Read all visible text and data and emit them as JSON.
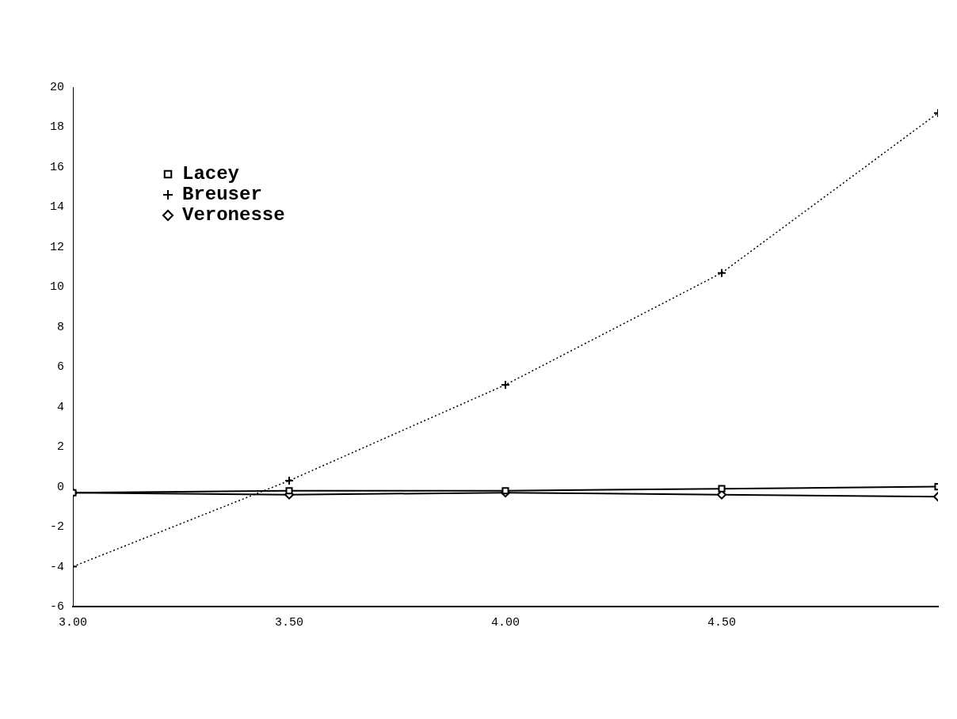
{
  "chart_data": {
    "type": "line",
    "x": [
      3.0,
      3.5,
      4.0,
      4.5,
      5.0
    ],
    "xlim": [
      3.0,
      5.0
    ],
    "xticks": [
      {
        "value": 3.0,
        "label": "3.00"
      },
      {
        "value": 3.5,
        "label": "3.50"
      },
      {
        "value": 4.0,
        "label": "4.00"
      },
      {
        "value": 4.5,
        "label": "4.50"
      }
    ],
    "ylim": [
      -6,
      20
    ],
    "yticks": [
      -6,
      -4,
      -2,
      0,
      2,
      4,
      6,
      8,
      10,
      12,
      14,
      16,
      18,
      20
    ],
    "series": [
      {
        "name": "Lacey",
        "color": "#000000",
        "marker": "square",
        "line_style": "solid",
        "values": [
          -0.3,
          -0.2,
          -0.2,
          -0.1,
          0.0
        ]
      },
      {
        "name": "Breuser",
        "color": "#000000",
        "marker": "cross",
        "line_style": "dotted",
        "values": [
          -4.0,
          0.3,
          5.1,
          10.7,
          18.7
        ]
      },
      {
        "name": "Veronesse",
        "color": "#000000",
        "marker": "diamond",
        "line_style": "solid",
        "values": [
          -0.3,
          -0.4,
          -0.3,
          -0.4,
          -0.5
        ]
      }
    ],
    "legend": "top left",
    "grid": false
  }
}
